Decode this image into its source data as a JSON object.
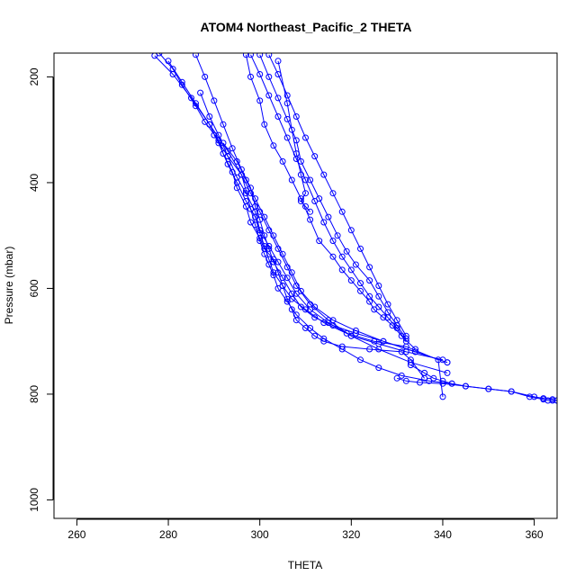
{
  "chart_data": {
    "type": "line",
    "title": "ATOM4 Northeast_Pacific_2 THETA",
    "xlabel": "THETA",
    "ylabel": "Pressure (mbar)",
    "xlim": [
      255,
      365
    ],
    "ylim": [
      1035,
      155
    ],
    "y_inverted": true,
    "xticks": [
      260,
      280,
      300,
      320,
      340,
      360
    ],
    "yticks": [
      200,
      400,
      600,
      800,
      1000
    ],
    "grid": false,
    "legend": "none",
    "color": "#0000ff",
    "marker": "open-circle",
    "series": [
      {
        "x": [
          278,
          281,
          283,
          286,
          288,
          291,
          292,
          294,
          295,
          297,
          298,
          300,
          301,
          303,
          304,
          305,
          306,
          307,
          308,
          310,
          312,
          314,
          318,
          324,
          331,
          333,
          336
        ],
        "y": [
          155,
          185,
          215,
          255,
          285,
          320,
          345,
          380,
          410,
          445,
          475,
          505,
          525,
          545,
          570,
          595,
          620,
          640,
          660,
          675,
          690,
          700,
          710,
          715,
          720,
          735,
          770
        ]
      },
      {
        "x": [
          277,
          281,
          285,
          289,
          293,
          296,
          297,
          298,
          299,
          300,
          301,
          302,
          303,
          304,
          306,
          308,
          311,
          314,
          318,
          322,
          326,
          331,
          337,
          342
        ],
        "y": [
          160,
          195,
          240,
          290,
          340,
          385,
          415,
          450,
          480,
          510,
          535,
          555,
          575,
          600,
          625,
          650,
          675,
          695,
          715,
          735,
          750,
          765,
          775,
          780
        ]
      },
      {
        "x": [
          280,
          283,
          286,
          289,
          291,
          293,
          295,
          297,
          299,
          300,
          301,
          302,
          303,
          305,
          307,
          310,
          314,
          319,
          325,
          332,
          339,
          340
        ],
        "y": [
          170,
          210,
          250,
          290,
          325,
          365,
          400,
          435,
          465,
          495,
          520,
          545,
          570,
          595,
          620,
          640,
          665,
          685,
          700,
          710,
          735,
          805
        ]
      },
      {
        "x": [
          286,
          288,
          290,
          292,
          294,
          296,
          298,
          299,
          300,
          301,
          302,
          303,
          305,
          307,
          309,
          312,
          316,
          321,
          327,
          334,
          341
        ],
        "y": [
          158,
          200,
          245,
          290,
          335,
          375,
          410,
          445,
          470,
          500,
          525,
          550,
          580,
          610,
          635,
          655,
          670,
          685,
          700,
          720,
          740
        ]
      },
      {
        "x": [
          287,
          289,
          291,
          293,
          295,
          297,
          299,
          300,
          302,
          304,
          306,
          308,
          311,
          315,
          320,
          326,
          332,
          340
        ],
        "y": [
          230,
          275,
          310,
          350,
          390,
          420,
          455,
          490,
          520,
          550,
          580,
          610,
          640,
          665,
          690,
          705,
          720,
          735
        ]
      },
      {
        "x": [
          290,
          293,
          296,
          298,
          300,
          302,
          304,
          306,
          308,
          311,
          315,
          320,
          326,
          333,
          341
        ],
        "y": [
          310,
          350,
          385,
          420,
          455,
          490,
          525,
          560,
          595,
          630,
          660,
          690,
          715,
          740,
          760
        ]
      },
      {
        "x": [
          292,
          295,
          297,
          299,
          301,
          303,
          305,
          307,
          309,
          312,
          316,
          321,
          327,
          334,
          341
        ],
        "y": [
          325,
          360,
          395,
          430,
          465,
          500,
          535,
          570,
          605,
          635,
          660,
          680,
          700,
          720,
          740
        ]
      },
      {
        "x": [
          297,
          298,
          300,
          301,
          303,
          305,
          307,
          309,
          311,
          313,
          316,
          318,
          320,
          322,
          324,
          325,
          327,
          329,
          331,
          334
        ],
        "y": [
          158,
          200,
          245,
          290,
          330,
          360,
          395,
          430,
          470,
          510,
          540,
          565,
          585,
          605,
          625,
          640,
          655,
          670,
          690,
          715
        ]
      },
      {
        "x": [
          298,
          300,
          302,
          304,
          306,
          308,
          310,
          312,
          314,
          316,
          318,
          320,
          322,
          324,
          326,
          328,
          330,
          332
        ],
        "y": [
          158,
          195,
          235,
          275,
          315,
          355,
          395,
          435,
          475,
          510,
          540,
          565,
          590,
          615,
          635,
          655,
          675,
          700
        ]
      },
      {
        "x": [
          300,
          302,
          304,
          306,
          308,
          309,
          311,
          313,
          315,
          317,
          319,
          321,
          324,
          326,
          328,
          330,
          332
        ],
        "y": [
          158,
          200,
          240,
          280,
          320,
          360,
          395,
          430,
          465,
          500,
          530,
          555,
          585,
          615,
          645,
          670,
          695
        ]
      },
      {
        "x": [
          302,
          304,
          306,
          308,
          310,
          312,
          314,
          316,
          318,
          320,
          322,
          324,
          326,
          328,
          330,
          332
        ],
        "y": [
          158,
          195,
          235,
          275,
          315,
          350,
          385,
          420,
          455,
          490,
          525,
          560,
          595,
          630,
          660,
          690
        ]
      },
      {
        "x": [
          304,
          306,
          307,
          308,
          309,
          310,
          309,
          310,
          311
        ],
        "y": [
          170,
          250,
          300,
          345,
          385,
          420,
          435,
          445,
          455
        ]
      },
      {
        "x": [
          330,
          332,
          335,
          340,
          345,
          350,
          355,
          360,
          362,
          364,
          365
        ],
        "y": [
          770,
          775,
          778,
          780,
          785,
          790,
          795,
          805,
          808,
          810,
          812
        ]
      },
      {
        "x": [
          333,
          336,
          338,
          340,
          342,
          345,
          350,
          355,
          359,
          362,
          363,
          364,
          365
        ],
        "y": [
          745,
          760,
          770,
          775,
          780,
          785,
          790,
          795,
          805,
          810,
          812,
          812,
          812
        ]
      }
    ]
  }
}
